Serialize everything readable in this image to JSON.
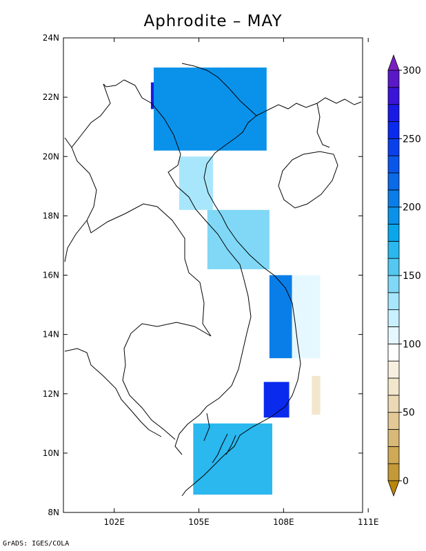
{
  "title": "Aphrodite – MAY",
  "credit": "GrADS: IGES/COLA",
  "map": {
    "lat_range": [
      8,
      24
    ],
    "lon_range": [
      100.2,
      110.8
    ],
    "lat_ticks": [
      "24N",
      "22N",
      "20N",
      "18N",
      "16N",
      "14N",
      "12N",
      "10N",
      "8N"
    ],
    "lon_ticks": [
      "102E",
      "105E",
      "108E",
      "111E"
    ],
    "lat_tick_values": [
      24,
      22,
      20,
      18,
      16,
      14,
      12,
      10,
      8
    ],
    "lon_tick_values": [
      102,
      105,
      108,
      111
    ]
  },
  "colorbar": {
    "labels": [
      "300",
      "250",
      "200",
      "150",
      "100",
      "50",
      "0"
    ],
    "label_values": [
      300,
      250,
      200,
      150,
      100,
      50,
      0
    ],
    "min": 0,
    "max": 300,
    "step": 12.5,
    "colors": [
      "#b8860b",
      "#c4993a",
      "#cfa955",
      "#d9b978",
      "#e2c996",
      "#ead9b4",
      "#f2e6cc",
      "#f7f0e0",
      "#ffffff",
      "#e6f8ff",
      "#c8f0ff",
      "#a8e6fb",
      "#80d8f6",
      "#54c8f0",
      "#2ab8ee",
      "#0aa6ec",
      "#0a92ea",
      "#0a7ee8",
      "#0a6ae8",
      "#0a56ea",
      "#0a40ec",
      "#0a2aee",
      "#1a1ae6",
      "#3a14d8",
      "#5a18c8",
      "#7a20c0"
    ]
  },
  "chart_data": {
    "type": "heatmap",
    "title": "Aphrodite – MAY",
    "xlabel": "",
    "ylabel": "",
    "x_ticks": [
      "102E",
      "105E",
      "108E",
      "111E"
    ],
    "y_ticks": [
      "8N",
      "10N",
      "12N",
      "14N",
      "16N",
      "18N",
      "20N",
      "22N",
      "24N"
    ],
    "legend": "colorbar-right",
    "grid": false,
    "regions": [
      {
        "lat": [
          21.6,
          22.5
        ],
        "lon": [
          103.3,
          104.2
        ],
        "value": 270
      },
      {
        "lat": [
          20.2,
          23.0
        ],
        "lon": [
          103.4,
          107.4
        ],
        "value": 190
      },
      {
        "lat": [
          18.2,
          20.0
        ],
        "lon": [
          104.3,
          105.5
        ],
        "value": 130
      },
      {
        "lat": [
          16.2,
          18.2
        ],
        "lon": [
          105.3,
          107.5
        ],
        "value": 140
      },
      {
        "lat": [
          13.2,
          16.0
        ],
        "lon": [
          107.5,
          108.3
        ],
        "value": 200
      },
      {
        "lat": [
          13.2,
          16.0
        ],
        "lon": [
          108.3,
          109.3
        ],
        "value": 110
      },
      {
        "lat": [
          11.2,
          12.4
        ],
        "lon": [
          107.3,
          108.2
        ],
        "value": 250
      },
      {
        "lat": [
          11.3,
          12.6
        ],
        "lon": [
          109.0,
          109.3
        ],
        "value": 65
      },
      {
        "lat": [
          8.6,
          11.0
        ],
        "lon": [
          104.8,
          107.6
        ],
        "value": 170
      }
    ]
  }
}
